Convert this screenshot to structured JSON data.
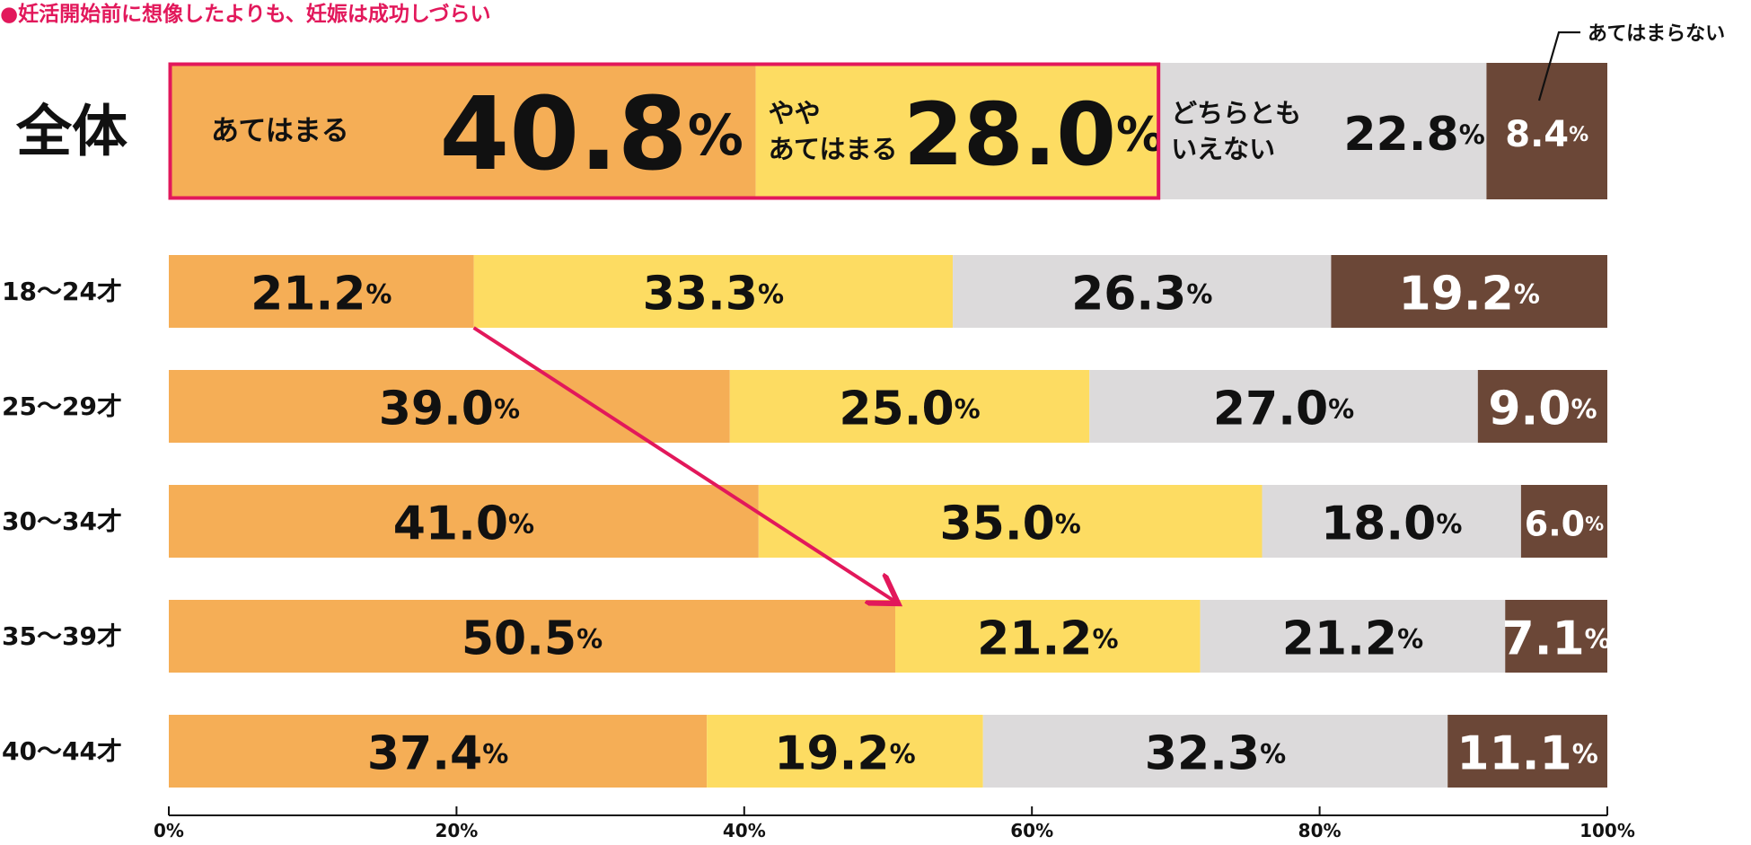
{
  "chart_data": {
    "type": "bar",
    "orientation": "horizontal",
    "stacked": true,
    "title": "●妊活開始前に想像したよりも、妊娠は成功しづらい",
    "categories": [
      "全体",
      "18〜24才",
      "25〜29才",
      "30〜34才",
      "35〜39才",
      "40〜44才"
    ],
    "series": [
      {
        "name": "あてはまる",
        "values": [
          40.8,
          21.2,
          39.0,
          41.0,
          50.5,
          37.4
        ]
      },
      {
        "name": "やや\nあてはまる",
        "values": [
          28.0,
          33.3,
          25.0,
          35.0,
          21.2,
          19.2
        ]
      },
      {
        "name": "どちらとも\nいえない",
        "values": [
          22.8,
          26.3,
          27.0,
          18.0,
          21.2,
          32.3
        ]
      },
      {
        "name": "あてはまらない",
        "values": [
          8.4,
          19.2,
          9.0,
          6.0,
          7.1,
          11.1
        ]
      }
    ],
    "unit": "%",
    "xlim": [
      0,
      100
    ],
    "xticks": [
      "0%",
      "20%",
      "40%",
      "60%",
      "80%",
      "100%"
    ],
    "colors": {
      "title": "#e2185b",
      "series": [
        "#f5ae56",
        "#fddc62",
        "#dcdadb",
        "#6b4737"
      ],
      "highlight": "#e2185b",
      "arrow": "#e2185b"
    },
    "annotations": {
      "arrow_from": {
        "category": "18〜24才",
        "value": 21.2
      },
      "arrow_to": {
        "category": "35〜39才",
        "value": 50.5
      }
    }
  }
}
